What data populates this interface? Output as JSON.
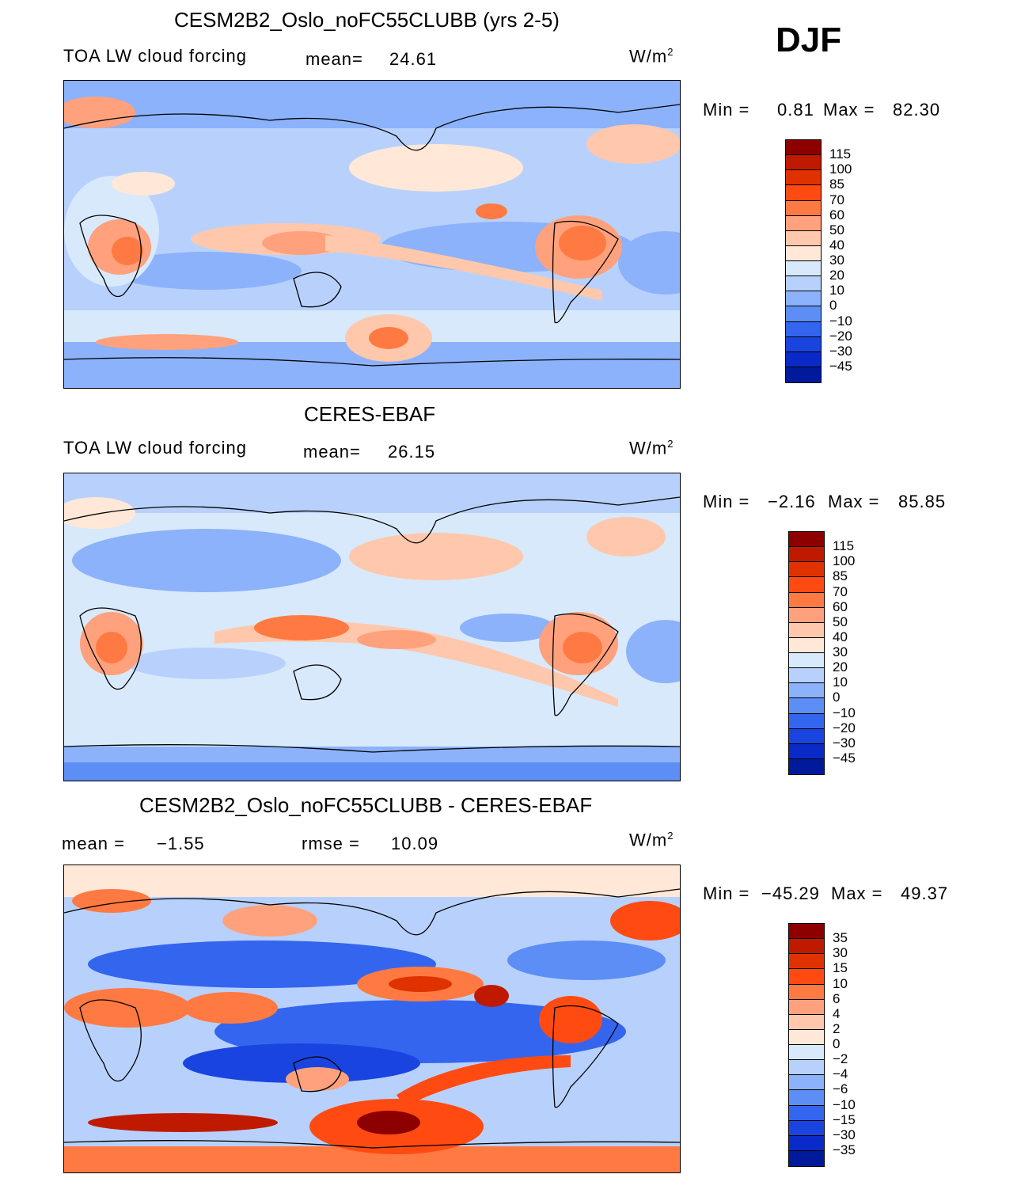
{
  "season": "DJF",
  "panels": [
    {
      "title": "CESM2B2_Oslo_noFC55CLUBB (yrs 2-5)",
      "variable": "TOA LW cloud forcing",
      "stat_label": "mean=",
      "stat_value": "24.61",
      "units": "W/m",
      "units_exp": "2",
      "min_label": "Min =",
      "min_value": "0.81",
      "max_label": "Max =",
      "max_value": "82.30",
      "levels": [
        "115",
        "100",
        "85",
        "70",
        "60",
        "50",
        "40",
        "30",
        "20",
        "10",
        "0",
        "−10",
        "−20",
        "−30",
        "−45"
      ],
      "colors": [
        "#8c0000",
        "#bf1a00",
        "#e03200",
        "#ff4b12",
        "#ff7a42",
        "#ffa17c",
        "#ffc8ac",
        "#ffe8d8",
        "#d8e9fb",
        "#b8d1fc",
        "#8cb2fb",
        "#5c8ef5",
        "#3465ef",
        "#1a44e0",
        "#0a2ac8",
        "#001a9c"
      ]
    },
    {
      "title": "CERES-EBAF",
      "variable": "TOA LW cloud forcing",
      "stat_label": "mean=",
      "stat_value": "26.15",
      "units": "W/m",
      "units_exp": "2",
      "min_label": "Min =",
      "min_value": "−2.16",
      "max_label": "Max =",
      "max_value": "85.85",
      "levels": [
        "115",
        "100",
        "85",
        "70",
        "60",
        "50",
        "40",
        "30",
        "20",
        "10",
        "0",
        "−10",
        "−20",
        "−30",
        "−45"
      ],
      "colors": [
        "#8c0000",
        "#bf1a00",
        "#e03200",
        "#ff4b12",
        "#ff7a42",
        "#ffa17c",
        "#ffc8ac",
        "#ffe8d8",
        "#d8e9fb",
        "#b8d1fc",
        "#8cb2fb",
        "#5c8ef5",
        "#3465ef",
        "#1a44e0",
        "#0a2ac8",
        "#001a9c"
      ]
    },
    {
      "title": "CESM2B2_Oslo_noFC55CLUBB - CERES-EBAF",
      "stat_label": "mean =",
      "stat_value": "−1.55",
      "rmse_label": "rmse =",
      "rmse_value": "10.09",
      "units": "W/m",
      "units_exp": "2",
      "min_label": "Min =",
      "min_value": "−45.29",
      "max_label": "Max =",
      "max_value": "49.37",
      "levels": [
        "35",
        "30",
        "15",
        "10",
        "6",
        "4",
        "2",
        "0",
        "−2",
        "−4",
        "−6",
        "−10",
        "−15",
        "−30",
        "−35"
      ],
      "colors": [
        "#8c0000",
        "#bf1a00",
        "#e03200",
        "#ff4b12",
        "#ff7a42",
        "#ffa17c",
        "#ffc8ac",
        "#ffe8d8",
        "#d8e9fb",
        "#b8d1fc",
        "#8cb2fb",
        "#5c8ef5",
        "#3465ef",
        "#1a44e0",
        "#0a2ac8",
        "#001a9c"
      ]
    }
  ],
  "chart_data": [
    {
      "type": "heatmap",
      "title": "CESM2B2_Oslo_noFC55CLUBB (yrs 2-5)",
      "subtitle": "TOA LW cloud forcing",
      "mean": 24.61,
      "min": 0.81,
      "max": 82.3,
      "units": "W/m^2",
      "contour_levels": [
        -45,
        -30,
        -20,
        -10,
        0,
        10,
        20,
        30,
        40,
        50,
        60,
        70,
        85,
        100,
        115
      ]
    },
    {
      "type": "heatmap",
      "title": "CERES-EBAF",
      "subtitle": "TOA LW cloud forcing",
      "mean": 26.15,
      "min": -2.16,
      "max": 85.85,
      "units": "W/m^2",
      "contour_levels": [
        -45,
        -30,
        -20,
        -10,
        0,
        10,
        20,
        30,
        40,
        50,
        60,
        70,
        85,
        100,
        115
      ]
    },
    {
      "type": "heatmap",
      "title": "CESM2B2_Oslo_noFC55CLUBB - CERES-EBAF",
      "mean": -1.55,
      "rmse": 10.09,
      "min": -45.29,
      "max": 49.37,
      "units": "W/m^2",
      "contour_levels": [
        -35,
        -30,
        -15,
        -10,
        -6,
        -4,
        -2,
        0,
        2,
        4,
        6,
        10,
        15,
        30,
        35
      ]
    }
  ]
}
